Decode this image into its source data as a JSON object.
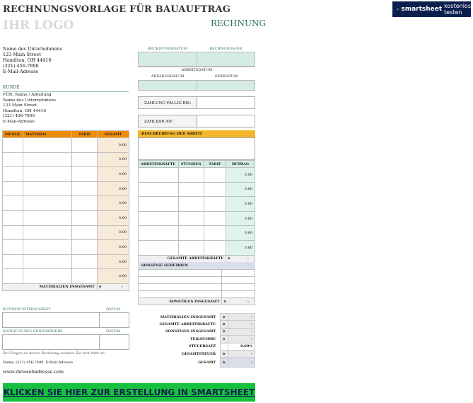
{
  "header": {
    "title": "RECHNUNGSVORLAGE FÜR BAUAUFTRAG",
    "logo": "IHR LOGO",
    "invoice_label": "RECHNUNG"
  },
  "banner": {
    "brand": "smartsheet",
    "cta": "kostenlos testen"
  },
  "company": {
    "lines": [
      "Name des Unternehmens",
      "123 Main Street",
      "Hamilton, OH 44416",
      "(321) 456-7890",
      "E-Mail-Adresse"
    ]
  },
  "invoice_fields": {
    "date_label": "RECHNUNGSDATUM",
    "number_label": "RECHNUNGS-NR.",
    "work_date_label": "ARBEITSDATUM",
    "start_label": "ANFANGSDATUM",
    "end_label": "ENDDATUM",
    "due_label": "ZAHLUNG FÄLLIG BIS:",
    "payable_label": "ZAHLBAR AN:"
  },
  "customer": {
    "section_label": "KUNDE",
    "lines": [
      "FÜR: Name / Abteilung",
      "Name des Unternehmens",
      "123 Main Street",
      "Hamilton, OH 44416",
      "(321) 456-7890",
      "E-Mail-Adresse"
    ]
  },
  "materials": {
    "headers": [
      "MENGE",
      "MATERIAL",
      "TARIF",
      "GESAMT"
    ],
    "amounts": [
      "0.00",
      "0.00",
      "0.00",
      "0.00",
      "0.00",
      "0.00",
      "0.00",
      "0.00",
      "0.00",
      "0.00"
    ],
    "total_label": "MATERIALIEN INSGESAMT",
    "total_cur": "$",
    "total_val": "-"
  },
  "work": {
    "description_label": "BESCHREIBUNG DER ARBEIT"
  },
  "labor": {
    "headers": [
      "ARBEITSKRÄFTE",
      "STUNDEN",
      "TARIF",
      "BETRAG"
    ],
    "amounts": [
      "0.00",
      "0.00",
      "0.00",
      "0.00",
      "0.00",
      "0.00"
    ],
    "total_label": "GESAMTE ARBEITSKRÄFTE",
    "total_cur": "$",
    "total_val": "-"
  },
  "other": {
    "label": "SONSTIGE GEBÜHREN",
    "total_label": "SONSTIGES INSGESAMT",
    "total_cur": "$",
    "total_val": "-"
  },
  "signatures": {
    "customer_label": "KUNDENUNTERSCHRIFT",
    "contractor_label": "SIGNATUR DES GENEHMIGERS",
    "date_label": "DATUM"
  },
  "summary": {
    "rows": [
      {
        "label": "MATERIALIEN INSGESAMT",
        "cur": "$",
        "val": "-"
      },
      {
        "label": "GESAMTE ARBEITSKRÄFTE",
        "cur": "$",
        "val": "-"
      },
      {
        "label": "SONSTIGES INSGESAMT",
        "cur": "$",
        "val": "-"
      },
      {
        "label": "TEILSUMME",
        "cur": "$",
        "val": "-"
      },
      {
        "label": "STEUERSATZ",
        "cur": "",
        "val": "0.00%"
      },
      {
        "label": "GESAMTSTEUER",
        "cur": "$",
        "val": "-"
      },
      {
        "label": "GESAMT",
        "cur": "$",
        "val": "-"
      }
    ]
  },
  "footer": {
    "question": "Bei Fragen zu dieser Rechnung wenden Sie sich bitte an",
    "contact": "Name, (321) 456-7890, E-Mail-Adresse",
    "website": "www.ihrewebadresse.com"
  },
  "cta": {
    "label": "KLICKEN SIE HIER ZUR ERSTELLUNG IN SMARTSHEET"
  }
}
